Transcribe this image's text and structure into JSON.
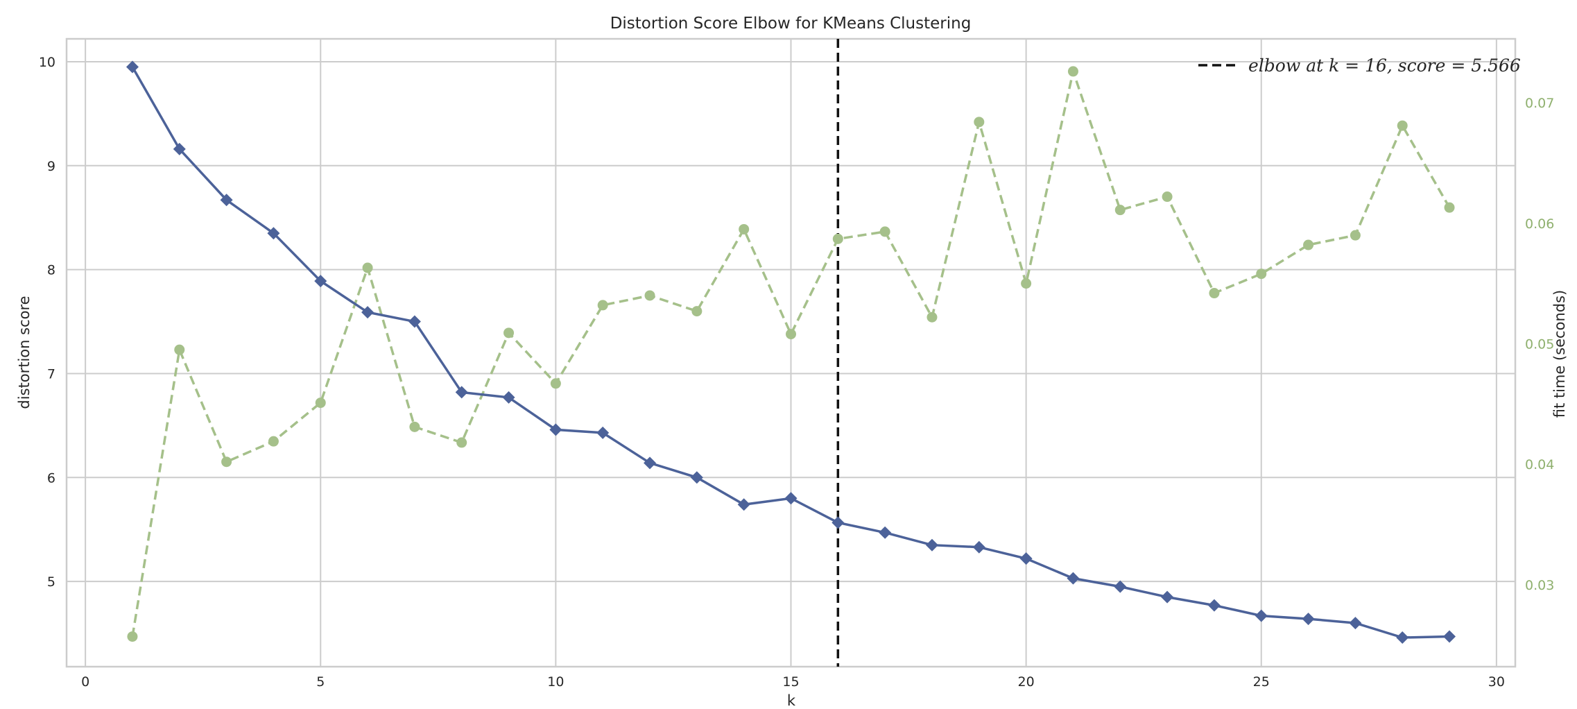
{
  "colors": {
    "distortion": "#4c6299",
    "fit_time": "#a5c08a",
    "fit_time_label": "#8fb06e",
    "elbow_line": "#111111",
    "grid": "#cccccc",
    "frame": "#cccccc"
  },
  "chart_data": {
    "type": "line",
    "title": "Distortion Score Elbow for KMeans Clustering",
    "xlabel": "k",
    "ylabel": "distortion score",
    "y2label": "fit time (seconds)",
    "xlim": [
      -0.4,
      30.4
    ],
    "ylim": [
      4.18,
      10.22
    ],
    "y2lim": [
      0.0232,
      0.0753
    ],
    "xticks": [
      0,
      5,
      10,
      15,
      20,
      25,
      30
    ],
    "yticks": [
      5,
      6,
      7,
      8,
      9,
      10
    ],
    "y2ticks": [
      0.03,
      0.04,
      0.05,
      0.06,
      0.07
    ],
    "y2ticklabels": [
      "0.03",
      "0.04",
      "0.05",
      "0.06",
      "0.07"
    ],
    "grid": true,
    "legend_position": "top-right",
    "x": [
      1,
      2,
      3,
      4,
      5,
      6,
      7,
      8,
      9,
      10,
      11,
      12,
      13,
      14,
      15,
      16,
      17,
      18,
      19,
      20,
      21,
      22,
      23,
      24,
      25,
      26,
      27,
      28,
      29
    ],
    "series": [
      {
        "axis": "left",
        "values": [
          9.95,
          9.16,
          8.67,
          8.35,
          7.89,
          7.59,
          7.5,
          6.82,
          6.77,
          6.46,
          6.43,
          6.14,
          6.0,
          5.74,
          5.8,
          5.566,
          5.47,
          5.35,
          5.33,
          5.22,
          5.03,
          4.95,
          4.85,
          4.77,
          4.67,
          4.64,
          4.6,
          4.46,
          4.47
        ]
      },
      {
        "axis": "right",
        "values": [
          0.0257,
          0.0495,
          0.0402,
          0.0419,
          0.0451,
          0.0563,
          0.0431,
          0.0418,
          0.0509,
          0.0467,
          0.0532,
          0.054,
          0.0527,
          0.0595,
          0.0508,
          0.0587,
          0.0593,
          0.0522,
          0.0684,
          0.055,
          0.0726,
          0.0611,
          0.0622,
          0.0542,
          0.0558,
          0.0582,
          0.059,
          0.0681,
          0.0613
        ]
      }
    ],
    "elbow": {
      "k": 16,
      "score": 5.566,
      "label": "elbow at k = 16, score = 5.566"
    }
  }
}
